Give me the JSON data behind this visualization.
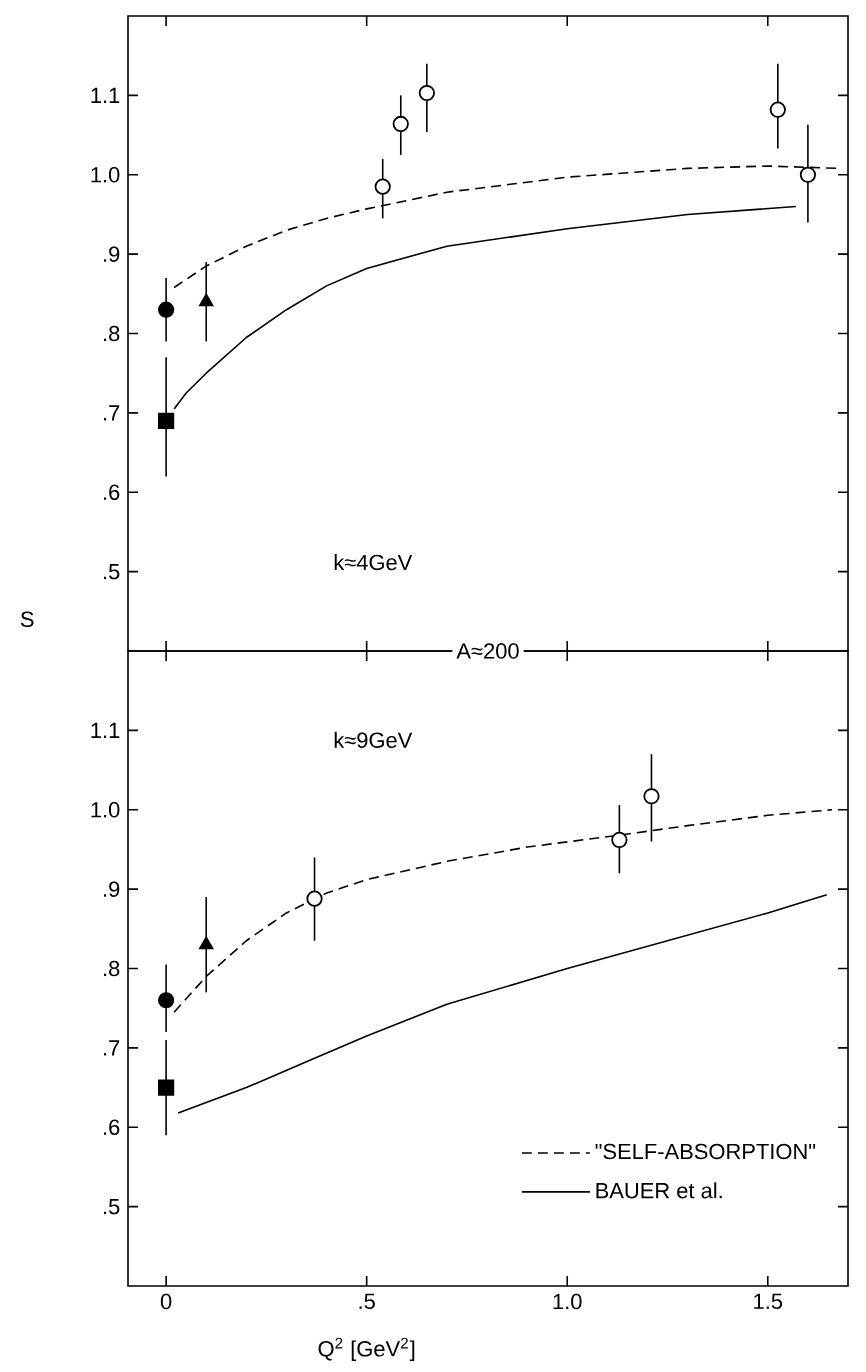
{
  "chart_data": [
    {
      "type": "scatter",
      "ylabel": "S",
      "annotations": [
        "k≈4GeV"
      ],
      "xlim": [
        -0.095,
        1.7
      ],
      "ylim": [
        0.4,
        1.2
      ],
      "tick_labels": "y",
      "xticks": [
        {
          "value": 0,
          "label": null
        },
        {
          "value": 0.5,
          "label": null
        },
        {
          "value": 1.0,
          "label": null
        },
        {
          "value": 1.5,
          "label": null
        }
      ],
      "yticks": [
        {
          "value": 0.5,
          "label": ".5"
        },
        {
          "value": 0.6,
          "label": ".6"
        },
        {
          "value": 0.7,
          "label": ".7"
        },
        {
          "value": 0.8,
          "label": ".8"
        },
        {
          "value": 0.9,
          "label": ".9"
        },
        {
          "value": 1.0,
          "label": "1.0"
        },
        {
          "value": 1.1,
          "label": "1.1"
        }
      ],
      "series": [
        {
          "color": "#000000",
          "marker": "circle",
          "x": [
            0
          ],
          "values": [
            0.83
          ],
          "errors": [
            [
              0.79,
              0.87
            ]
          ]
        },
        {
          "color": "#000000",
          "marker": "triangle",
          "x": [
            0.1
          ],
          "values": [
            0.84
          ],
          "errors": [
            [
              0.79,
              0.89
            ]
          ]
        },
        {
          "color": "#000000",
          "marker": "square",
          "x": [
            0
          ],
          "values": [
            0.69
          ],
          "errors": [
            [
              0.62,
              0.77
            ]
          ]
        },
        {
          "color": "#ffffff",
          "marker": "circle",
          "x": [
            0.54,
            0.585,
            0.65,
            1.525,
            1.6
          ],
          "values": [
            0.985,
            1.064,
            1.103,
            1.082,
            1.0
          ],
          "errors": [
            [
              0.945,
              1.02
            ],
            [
              1.025,
              1.1
            ],
            [
              1.054,
              1.14
            ],
            [
              1.033,
              1.14
            ],
            [
              0.94,
              1.063
            ]
          ]
        },
        {
          "type": "line",
          "line_style": "dashed",
          "color": "#000000",
          "marker": "none",
          "x": [
            0.02,
            0.1,
            0.2,
            0.3,
            0.4,
            0.5,
            0.7,
            1.0,
            1.3,
            1.5,
            1.68
          ],
          "values": [
            0.858,
            0.885,
            0.91,
            0.93,
            0.945,
            0.957,
            0.978,
            0.997,
            1.008,
            1.011,
            1.008
          ]
        },
        {
          "type": "line",
          "line_style": "solid",
          "color": "#000000",
          "marker": "none",
          "x": [
            0.02,
            0.05,
            0.1,
            0.2,
            0.3,
            0.4,
            0.5,
            0.7,
            1.0,
            1.3,
            1.57
          ],
          "values": [
            0.705,
            0.725,
            0.75,
            0.795,
            0.83,
            0.86,
            0.882,
            0.91,
            0.932,
            0.95,
            0.96
          ]
        }
      ]
    },
    {
      "type": "scatter",
      "xlabel": "Q$^{2}$ [GeV$^{2}$]",
      "annotations": [
        "A≈200",
        "k≈9GeV"
      ],
      "xlim": [
        -0.095,
        1.7
      ],
      "ylim": [
        0.4,
        1.2
      ],
      "legend": "bottom right",
      "xticks": [
        0,
        {
          "value": 0.5,
          "label": ".5"
        },
        {
          "value": 1.0,
          "label": "1.0"
        },
        {
          "value": 1.5,
          "label": "1.5"
        }
      ],
      "yticks": [
        {
          "value": 0.5,
          "label": ".5"
        },
        {
          "value": 0.6,
          "label": ".6"
        },
        {
          "value": 0.7,
          "label": ".7"
        },
        {
          "value": 0.8,
          "label": ".8"
        },
        {
          "value": 0.9,
          "label": ".9"
        },
        {
          "value": 1.0,
          "label": "1.0"
        },
        {
          "value": 1.1,
          "label": "1.1"
        }
      ],
      "series": [
        {
          "color": "#000000",
          "marker": "circle",
          "x": [
            0
          ],
          "values": [
            0.76
          ],
          "errors": [
            [
              0.72,
              0.805
            ]
          ]
        },
        {
          "color": "#000000",
          "marker": "triangle",
          "x": [
            0.1
          ],
          "values": [
            0.83
          ],
          "errors": [
            [
              0.77,
              0.89
            ]
          ]
        },
        {
          "color": "#000000",
          "marker": "square",
          "x": [
            0
          ],
          "values": [
            0.65
          ],
          "errors": [
            [
              0.59,
              0.71
            ]
          ]
        },
        {
          "color": "#ffffff",
          "marker": "circle",
          "x": [
            0.37,
            1.13,
            1.21
          ],
          "values": [
            0.888,
            0.962,
            1.017
          ],
          "errors": [
            [
              0.835,
              0.94
            ],
            [
              0.92,
              1.006
            ],
            [
              0.96,
              1.07
            ]
          ]
        },
        {
          "type": "line",
          "name": "\"SELF-ABSORPTION\"",
          "line_style": "dashed",
          "color": "#000000",
          "marker": "none",
          "x": [
            0.02,
            0.1,
            0.2,
            0.3,
            0.4,
            0.5,
            0.7,
            0.9,
            1.13,
            1.3,
            1.5,
            1.66
          ],
          "values": [
            0.745,
            0.79,
            0.835,
            0.87,
            0.895,
            0.912,
            0.935,
            0.953,
            0.968,
            0.98,
            0.993,
            1.0
          ]
        },
        {
          "type": "line",
          "name": "BAUER et al.",
          "line_style": "solid",
          "color": "#000000",
          "marker": "none",
          "x": [
            0.03,
            0.2,
            0.37,
            0.5,
            0.7,
            1.0,
            1.25,
            1.5,
            1.647
          ],
          "values": [
            0.618,
            0.65,
            0.687,
            0.715,
            0.755,
            0.8,
            0.835,
            0.87,
            0.893
          ]
        }
      ]
    }
  ]
}
